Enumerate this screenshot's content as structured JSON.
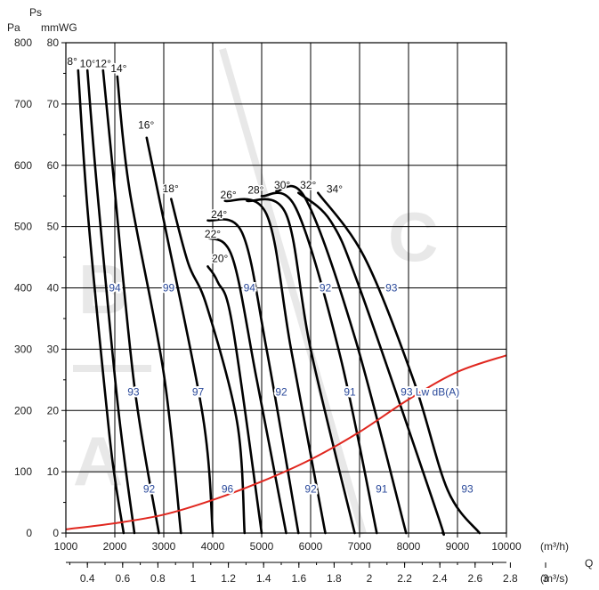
{
  "chart_data": {
    "type": "line",
    "ylabel_top": "Ps",
    "ylabel_pa": "Pa",
    "ylabel_mmwg": "mmWG",
    "xlabel": "Q",
    "x_unit_m3h": "(m³/h)",
    "x_unit_m3s": "(m³/s)",
    "xlim": [
      1000,
      10000
    ],
    "ylim": [
      0,
      800
    ],
    "grid": true,
    "x_ticks_m3h": [
      "1000",
      "2000",
      "3000",
      "4000",
      "5000",
      "6000",
      "7000",
      "8000",
      "9000",
      "10000"
    ],
    "x_ticks_m3s": [
      "0.4",
      "0.6",
      "0.8",
      "1",
      "1.2",
      "1.4",
      "1.6",
      "1.8",
      "2",
      "2.2",
      "2.4",
      "2.6",
      "2.8",
      "3"
    ],
    "y_ticks_pa": [
      "0",
      "100",
      "200",
      "300",
      "400",
      "500",
      "600",
      "700",
      "800"
    ],
    "y_ticks_mmwg": [
      "0",
      "10",
      "20",
      "30",
      "40",
      "50",
      "60",
      "70",
      "80"
    ],
    "regions": [
      "A",
      "B",
      "C"
    ],
    "colors": {
      "curves": "#000000",
      "system_curve": "#e0271f",
      "noise_labels": "#2b4a9b",
      "grid": "#000000"
    },
    "series": [
      {
        "name": "8°",
        "points": [
          [
            1250,
            755
          ],
          [
            1450,
            520
          ],
          [
            1850,
            190
          ],
          [
            2000,
            90
          ],
          [
            2180,
            0
          ]
        ]
      },
      {
        "name": "10°",
        "points": [
          [
            1440,
            755
          ],
          [
            1640,
            560
          ],
          [
            2060,
            210
          ],
          [
            2400,
            0
          ]
        ]
      },
      {
        "name": "12°",
        "points": [
          [
            1760,
            755
          ],
          [
            1950,
            600
          ],
          [
            2400,
            240
          ],
          [
            2900,
            0
          ]
        ]
      },
      {
        "name": "14°",
        "points": [
          [
            2050,
            745
          ],
          [
            2300,
            560
          ],
          [
            3000,
            260
          ],
          [
            3350,
            0
          ]
        ]
      },
      {
        "name": "16°",
        "points": [
          [
            2650,
            645
          ],
          [
            3000,
            510
          ],
          [
            3800,
            190
          ],
          [
            4000,
            0
          ]
        ]
      },
      {
        "name": "18°",
        "points": [
          [
            3150,
            545
          ],
          [
            3500,
            440
          ],
          [
            3880,
            370
          ],
          [
            4500,
            180
          ],
          [
            4650,
            0
          ]
        ]
      },
      {
        "name": "20°",
        "points": [
          [
            3900,
            435
          ],
          [
            4100,
            410
          ],
          [
            4400,
            340
          ],
          [
            5000,
            0
          ]
        ]
      },
      {
        "name": "22°",
        "points": [
          [
            3900,
            482
          ],
          [
            4400,
            450
          ],
          [
            4900,
            250
          ],
          [
            5500,
            0
          ]
        ]
      },
      {
        "name": "24°",
        "points": [
          [
            3900,
            510
          ],
          [
            4600,
            490
          ],
          [
            5100,
            300
          ],
          [
            5750,
            0
          ]
        ]
      },
      {
        "name": "26°",
        "points": [
          [
            4250,
            542
          ],
          [
            5100,
            520
          ],
          [
            5600,
            300
          ],
          [
            6300,
            0
          ]
        ]
      },
      {
        "name": "28°",
        "points": [
          [
            4700,
            542
          ],
          [
            5500,
            520
          ],
          [
            6000,
            300
          ],
          [
            6900,
            0
          ]
        ]
      },
      {
        "name": "30°",
        "points": [
          [
            5000,
            550
          ],
          [
            5700,
            530
          ],
          [
            6600,
            290
          ],
          [
            7350,
            0
          ]
        ]
      },
      {
        "name": "32°",
        "points": [
          [
            5300,
            558
          ],
          [
            5900,
            545
          ],
          [
            6900,
            320
          ],
          [
            7950,
            0
          ]
        ]
      },
      {
        "name": "34°",
        "points": [
          [
            5750,
            555
          ],
          [
            6400,
            510
          ],
          [
            7000,
            400
          ],
          [
            8550,
            40
          ],
          [
            8700,
            0
          ]
        ]
      },
      {
        "name": "",
        "points": [
          [
            6150,
            555
          ],
          [
            7100,
            450
          ],
          [
            8100,
            250
          ],
          [
            8800,
            70
          ],
          [
            9450,
            0
          ]
        ]
      }
    ],
    "system_curve": [
      [
        1000,
        6
      ],
      [
        2000,
        16
      ],
      [
        3000,
        30
      ],
      [
        4000,
        54
      ],
      [
        5000,
        84
      ],
      [
        6000,
        120
      ],
      [
        7000,
        165
      ],
      [
        8000,
        218
      ],
      [
        9000,
        263
      ],
      [
        10000,
        290
      ]
    ],
    "blade_angle_labels": [
      {
        "text": "8°",
        "x": 1130,
        "y": 764
      },
      {
        "text": "10°",
        "x": 1450,
        "y": 760
      },
      {
        "text": "12°",
        "x": 1760,
        "y": 760
      },
      {
        "text": "14°",
        "x": 2080,
        "y": 752
      },
      {
        "text": "16°",
        "x": 2640,
        "y": 660
      },
      {
        "text": "18°",
        "x": 3140,
        "y": 556
      },
      {
        "text": "20°",
        "x": 4150,
        "y": 442
      },
      {
        "text": "22°",
        "x": 4000,
        "y": 482
      },
      {
        "text": "24°",
        "x": 4130,
        "y": 514
      },
      {
        "text": "26°",
        "x": 4320,
        "y": 546
      },
      {
        "text": "28°",
        "x": 4880,
        "y": 554
      },
      {
        "text": "30°",
        "x": 5420,
        "y": 562
      },
      {
        "text": "32°",
        "x": 5950,
        "y": 562
      },
      {
        "text": "34°",
        "x": 6490,
        "y": 555
      }
    ],
    "noise_labels": [
      {
        "text": "94",
        "x": 2000,
        "y": 400
      },
      {
        "text": "99",
        "x": 3100,
        "y": 400
      },
      {
        "text": "94",
        "x": 4750,
        "y": 400
      },
      {
        "text": "92",
        "x": 6300,
        "y": 400
      },
      {
        "text": "93",
        "x": 7650,
        "y": 400
      },
      {
        "text": "93",
        "x": 2380,
        "y": 230
      },
      {
        "text": "97",
        "x": 3700,
        "y": 230
      },
      {
        "text": "92",
        "x": 5400,
        "y": 230
      },
      {
        "text": "91",
        "x": 6800,
        "y": 230
      },
      {
        "text": "93 Lw dB(A)",
        "x": 8440,
        "y": 230
      },
      {
        "text": "92",
        "x": 2700,
        "y": 72
      },
      {
        "text": "96",
        "x": 4300,
        "y": 72
      },
      {
        "text": "92",
        "x": 6000,
        "y": 72
      },
      {
        "text": "91",
        "x": 7450,
        "y": 72
      },
      {
        "text": "93",
        "x": 9200,
        "y": 72
      }
    ]
  }
}
